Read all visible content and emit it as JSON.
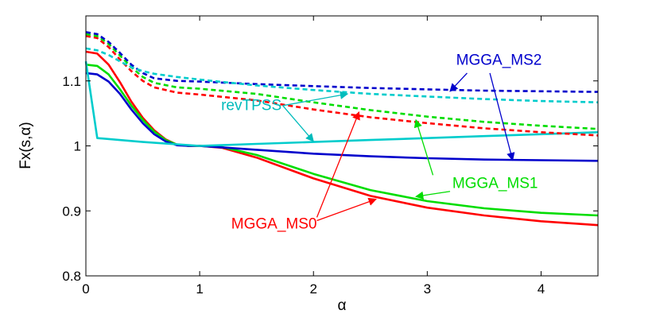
{
  "chart_data": {
    "type": "line",
    "title": "",
    "xlabel": "α",
    "ylabel": "Fx(s,α)",
    "xlim": [
      0,
      4.5
    ],
    "ylim": [
      0.8,
      1.2
    ],
    "x_ticks": [
      "0",
      "1",
      "2",
      "3",
      "4"
    ],
    "y_ticks": [
      "0.8",
      "0.9",
      "1",
      "1.1"
    ],
    "x_tick_values": [
      0,
      1,
      2,
      3,
      4
    ],
    "y_tick_values": [
      0.8,
      0.9,
      1.0,
      1.1
    ],
    "grid": false,
    "legend": "none",
    "colors": {
      "MGGA_MS0": "#ff0000",
      "MGGA_MS1": "#00dd00",
      "MGGA_MS2": "#0000cc",
      "revTPSS": "#00cccc"
    },
    "series": [
      {
        "name": "MGGA_MS0",
        "style": "solid",
        "color": "#ff0000",
        "x": [
          0,
          0.1,
          0.2,
          0.3,
          0.4,
          0.5,
          0.6,
          0.7,
          0.8,
          0.9,
          1.0,
          1.2,
          1.5,
          2.0,
          2.5,
          3.0,
          3.5,
          4.0,
          4.5
        ],
        "y": [
          1.145,
          1.142,
          1.125,
          1.098,
          1.068,
          1.043,
          1.024,
          1.01,
          1.002,
          1.0,
          1.0,
          0.997,
          0.982,
          0.95,
          0.923,
          0.905,
          0.893,
          0.884,
          0.878
        ]
      },
      {
        "name": "MGGA_MS1",
        "style": "solid",
        "color": "#00dd00",
        "x": [
          0,
          0.1,
          0.2,
          0.3,
          0.4,
          0.5,
          0.6,
          0.7,
          0.8,
          0.9,
          1.0,
          1.2,
          1.5,
          2.0,
          2.5,
          3.0,
          3.5,
          4.0,
          4.5
        ],
        "y": [
          1.125,
          1.123,
          1.11,
          1.087,
          1.062,
          1.04,
          1.022,
          1.009,
          1.002,
          1.0,
          1.0,
          0.998,
          0.986,
          0.957,
          0.932,
          0.915,
          0.904,
          0.897,
          0.893
        ]
      },
      {
        "name": "MGGA_MS2",
        "style": "solid",
        "color": "#0000cc",
        "x": [
          0,
          0.1,
          0.2,
          0.3,
          0.4,
          0.5,
          0.6,
          0.7,
          0.8,
          0.9,
          1.0,
          1.5,
          2.0,
          2.5,
          3.0,
          3.5,
          4.0,
          4.5
        ],
        "y": [
          1.112,
          1.11,
          1.099,
          1.08,
          1.056,
          1.035,
          1.018,
          1.007,
          1.001,
          1.0,
          1.0,
          0.994,
          0.988,
          0.984,
          0.981,
          0.979,
          0.978,
          0.977
        ]
      },
      {
        "name": "revTPSS",
        "style": "solid",
        "color": "#00cccc",
        "x": [
          0,
          0.1,
          0.5,
          1.0,
          1.5,
          2.0,
          2.5,
          3.0,
          3.5,
          4.0,
          4.5
        ],
        "y": [
          1.13,
          1.012,
          1.006,
          1.0,
          1.003,
          1.006,
          1.009,
          1.012,
          1.015,
          1.018,
          1.021
        ]
      },
      {
        "name": "MGGA_MS0 (dashed)",
        "style": "dashed",
        "color": "#ff0000",
        "x": [
          0,
          0.1,
          0.2,
          0.3,
          0.4,
          0.5,
          0.6,
          0.8,
          1.0,
          1.5,
          2.0,
          2.5,
          3.0,
          3.5,
          4.0,
          4.5
        ],
        "y": [
          1.169,
          1.166,
          1.152,
          1.133,
          1.115,
          1.1,
          1.09,
          1.082,
          1.079,
          1.07,
          1.056,
          1.044,
          1.035,
          1.027,
          1.021,
          1.016
        ]
      },
      {
        "name": "MGGA_MS1 (dashed)",
        "style": "dashed",
        "color": "#00dd00",
        "x": [
          0,
          0.1,
          0.2,
          0.3,
          0.4,
          0.5,
          0.6,
          0.8,
          1.0,
          1.5,
          2.0,
          2.5,
          3.0,
          3.5,
          4.0,
          4.5
        ],
        "y": [
          1.172,
          1.169,
          1.157,
          1.139,
          1.121,
          1.106,
          1.097,
          1.09,
          1.088,
          1.08,
          1.067,
          1.055,
          1.045,
          1.037,
          1.031,
          1.026
        ]
      },
      {
        "name": "MGGA_MS2 (dashed)",
        "style": "dashed",
        "color": "#0000cc",
        "x": [
          0,
          0.1,
          0.2,
          0.3,
          0.4,
          0.5,
          0.6,
          0.8,
          1.0,
          1.5,
          2.0,
          2.5,
          3.0,
          3.5,
          4.0,
          4.5
        ],
        "y": [
          1.175,
          1.172,
          1.16,
          1.143,
          1.125,
          1.112,
          1.104,
          1.1,
          1.099,
          1.095,
          1.092,
          1.089,
          1.087,
          1.085,
          1.084,
          1.083
        ]
      },
      {
        "name": "revTPSS (dashed)",
        "style": "dashed",
        "color": "#00cccc",
        "x": [
          0,
          0.1,
          0.2,
          0.3,
          0.4,
          0.5,
          0.6,
          0.8,
          1.0,
          1.5,
          2.0,
          2.5,
          3.0,
          3.5,
          4.0,
          4.5
        ],
        "y": [
          1.15,
          1.147,
          1.14,
          1.13,
          1.121,
          1.115,
          1.111,
          1.106,
          1.102,
          1.093,
          1.086,
          1.08,
          1.076,
          1.072,
          1.069,
          1.067
        ]
      }
    ],
    "annotations": [
      {
        "text": "MGGA_MS2",
        "color": "#0000cc",
        "arrows_to": [
          [
            3.2,
            1.084
          ],
          [
            3.75,
            0.978
          ]
        ]
      },
      {
        "text": "revTPSS",
        "color": "#00bbbb",
        "arrows_to": [
          [
            2.3,
            1.08
          ],
          [
            2.0,
            1.007
          ]
        ]
      },
      {
        "text": "MGGA_MS1",
        "color": "#00dd00",
        "arrows_to": [
          [
            2.9,
            1.04
          ],
          [
            2.9,
            0.922
          ]
        ]
      },
      {
        "text": "MGGA_MS0",
        "color": "#ff0000",
        "arrows_to": [
          [
            2.4,
            1.052
          ],
          [
            2.55,
            0.918
          ]
        ]
      }
    ]
  }
}
